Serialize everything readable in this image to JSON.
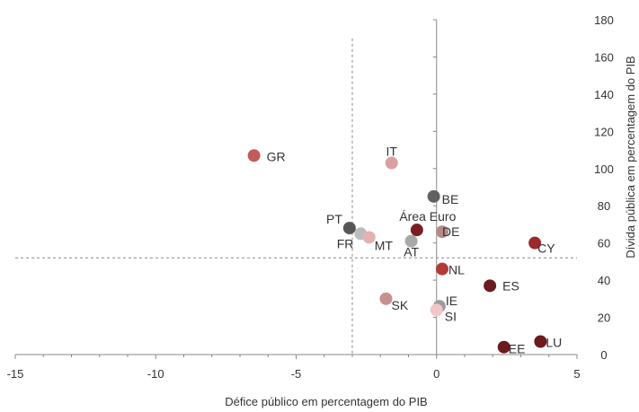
{
  "chart_data": {
    "type": "scatter",
    "xlabel": "Défice público em percentagem do PIB",
    "ylabel": "Dívida pública em percentagem do PIB",
    "xlim": [
      -15,
      5
    ],
    "ylim": [
      0,
      180
    ],
    "xticks": [
      -15,
      -10,
      -5,
      0,
      5
    ],
    "yticks": [
      0,
      20,
      40,
      60,
      80,
      100,
      120,
      140,
      160,
      180
    ],
    "x_tick_labels": [
      "-15",
      "-10",
      "-5",
      "0",
      "5"
    ],
    "y_tick_labels": [
      "0",
      "20",
      "40",
      "60",
      "80",
      "100",
      "120",
      "140",
      "160",
      "180"
    ],
    "reference_lines": {
      "x": -3,
      "y": 52
    },
    "grid": false,
    "y_axis_side": "right",
    "points": [
      {
        "label": "GR",
        "x": -6.5,
        "y": 107,
        "color": "#c25b5b"
      },
      {
        "label": "IT",
        "x": -1.6,
        "y": 103,
        "color": "#d9a0a0"
      },
      {
        "label": "BE",
        "x": -0.1,
        "y": 85,
        "color": "#616161"
      },
      {
        "label": "PT",
        "x": -3.1,
        "y": 68,
        "color": "#565656"
      },
      {
        "label": "Área Euro",
        "x": -0.7,
        "y": 67,
        "color": "#7b1e22"
      },
      {
        "label": "DE",
        "x": 0.2,
        "y": 66,
        "color": "#b48a8a"
      },
      {
        "label": "FR",
        "x": -2.7,
        "y": 65,
        "color": "#bdbdbd"
      },
      {
        "label": "MT",
        "x": -2.4,
        "y": 63,
        "color": "#e4b1b1"
      },
      {
        "label": "AT",
        "x": -0.9,
        "y": 61,
        "color": "#a8a8a8"
      },
      {
        "label": "CY",
        "x": 3.5,
        "y": 60,
        "color": "#9c2a2a"
      },
      {
        "label": "NL",
        "x": 0.2,
        "y": 46,
        "color": "#b43a3a"
      },
      {
        "label": "ES",
        "x": 1.9,
        "y": 37,
        "color": "#6b1a1d"
      },
      {
        "label": "SK",
        "x": -1.8,
        "y": 30,
        "color": "#c88f8f"
      },
      {
        "label": "IE",
        "x": 0.1,
        "y": 26,
        "color": "#9c9c9c"
      },
      {
        "label": "SI",
        "x": 0.0,
        "y": 24,
        "color": "#f1c6c6"
      },
      {
        "label": "LU",
        "x": 3.7,
        "y": 7,
        "color": "#6b1a1d"
      },
      {
        "label": "EE",
        "x": 2.4,
        "y": 4,
        "color": "#6b1a1d"
      }
    ]
  }
}
